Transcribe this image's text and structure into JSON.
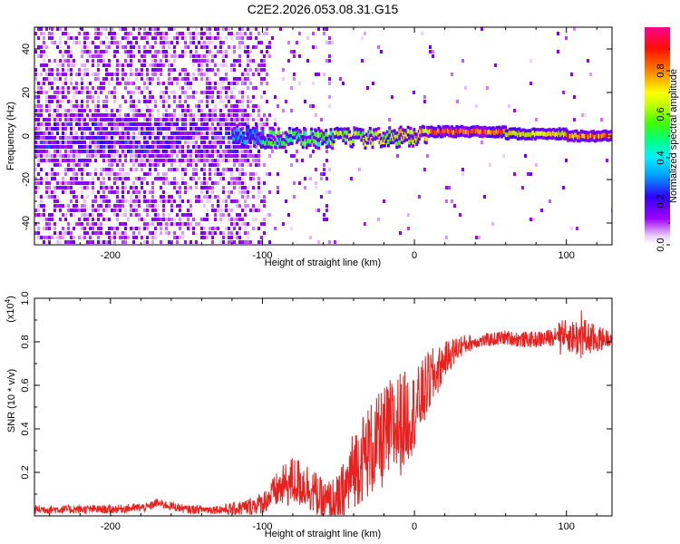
{
  "title": "C2E2.2026.053.08.31.G15",
  "chart_data": [
    {
      "type": "heatmap",
      "xlabel": "Height of straight line (km)",
      "ylabel": "Frequency (Hz)",
      "xlim": [
        -250,
        130
      ],
      "ylim": [
        -50,
        50
      ],
      "xticks": [
        -200,
        -100,
        0,
        100
      ],
      "yticks": [
        -40,
        -20,
        0,
        20,
        40
      ],
      "colorbar": {
        "label": "Normalized spectral amplitude",
        "range": [
          0,
          1
        ],
        "ticks": [
          "0.0",
          "0.2",
          "0.4",
          "0.6",
          "0.8"
        ],
        "tick_values": [
          0.0,
          0.2,
          0.4,
          0.6,
          0.8
        ],
        "colors": [
          "#ffffff",
          "#d6a8ff",
          "#8000ff",
          "#0000ff",
          "#00d8ff",
          "#00ff80",
          "#80ff00",
          "#ffff00",
          "#ff8000",
          "#ff0000",
          "#ff0080"
        ]
      },
      "trace": {
        "description_free": true,
        "segments": [
          {
            "x0": -120,
            "x1": -100,
            "freq": 0,
            "amp": 0.35
          },
          {
            "x0": -100,
            "x1": -55,
            "freq": -1,
            "amp": 0.55
          },
          {
            "x0": -55,
            "x1": -10,
            "freq": -1,
            "amp": 0.7
          },
          {
            "x0": -10,
            "x1": 10,
            "freq": 0,
            "amp": 0.8
          },
          {
            "x0": 10,
            "x1": 60,
            "freq": 2,
            "amp": 0.95
          },
          {
            "x0": 60,
            "x1": 100,
            "freq": 1,
            "amp": 0.75
          },
          {
            "x0": 100,
            "x1": 130,
            "freq": 0,
            "amp": 0.9
          }
        ]
      }
    },
    {
      "type": "line",
      "series_name": "SNR",
      "color": "#e8201e",
      "xlabel": "Height of straight line (km)",
      "ylabel": "SNR (10 * v/v)",
      "scale_label": "(x10",
      "scale_exp": "4",
      "scale_close": ")",
      "xlim": [
        -250,
        130
      ],
      "ylim": [
        0,
        1.0
      ],
      "xticks": [
        -200,
        -100,
        0,
        100
      ],
      "yticks": [
        "0.2",
        "0.4",
        "0.6",
        "0.8",
        "1.0"
      ],
      "ytick_values": [
        0.2,
        0.4,
        0.6,
        0.8,
        1.0
      ],
      "envelope": {
        "x": [
          -250,
          -200,
          -175,
          -170,
          -150,
          -120,
          -110,
          -100,
          -90,
          -80,
          -70,
          -60,
          -50,
          -45,
          -40,
          -30,
          -25,
          -20,
          -15,
          -10,
          -5,
          0,
          5,
          10,
          15,
          20,
          30,
          40,
          50,
          60,
          70,
          80,
          90,
          95,
          100,
          105,
          110,
          120,
          130
        ],
        "y": [
          0.03,
          0.03,
          0.04,
          0.06,
          0.03,
          0.03,
          0.04,
          0.06,
          0.12,
          0.16,
          0.14,
          0.06,
          0.04,
          0.12,
          0.22,
          0.3,
          0.32,
          0.36,
          0.4,
          0.42,
          0.45,
          0.48,
          0.55,
          0.62,
          0.66,
          0.72,
          0.78,
          0.8,
          0.81,
          0.82,
          0.81,
          0.81,
          0.82,
          0.85,
          0.83,
          0.82,
          0.82,
          0.81,
          0.82
        ]
      },
      "noise": {
        "x": [
          -250,
          -130,
          -100,
          -80,
          -60,
          -50,
          -30,
          -10,
          0,
          10,
          20,
          40,
          90,
          110,
          130
        ],
        "amp": [
          0.02,
          0.02,
          0.05,
          0.12,
          0.1,
          0.15,
          0.22,
          0.25,
          0.18,
          0.15,
          0.08,
          0.03,
          0.04,
          0.1,
          0.03
        ]
      }
    }
  ]
}
